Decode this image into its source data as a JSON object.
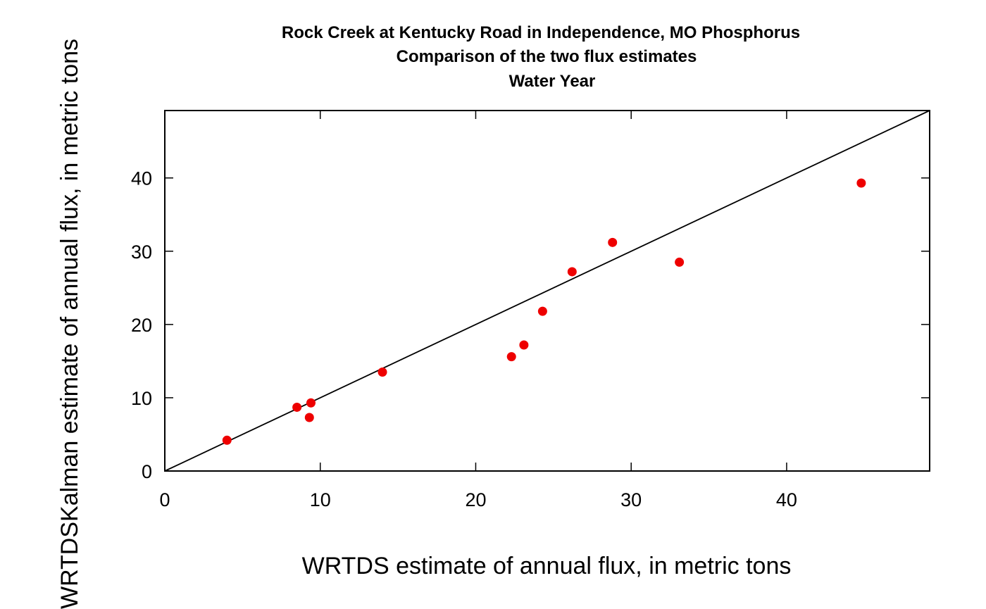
{
  "chart_data": {
    "type": "scatter",
    "title": [
      "Rock Creek at Kentucky Road in Independence, MO  Phosphorus",
      "Comparison of the two flux estimates",
      "Water Year"
    ],
    "xlabel": "WRTDS estimate of annual flux, in metric tons",
    "ylabel": "WRTDSKalman estimate of annual flux, in metric tons",
    "xlim": [
      0,
      49.2
    ],
    "ylim": [
      0,
      49.2
    ],
    "xticks": [
      0,
      10,
      20,
      30,
      40
    ],
    "yticks": [
      0,
      10,
      20,
      30,
      40
    ],
    "grid": false,
    "legend": "none",
    "reference_line": "1:1",
    "point_color": "#ee0000",
    "series": [
      {
        "x": [
          4.0,
          8.5,
          9.3,
          9.4,
          14.0,
          22.3,
          23.1,
          24.3,
          26.2,
          28.8,
          33.1,
          44.8
        ],
        "y": [
          4.2,
          8.7,
          7.3,
          9.3,
          13.5,
          15.6,
          17.2,
          21.8,
          27.2,
          31.2,
          28.5,
          39.3
        ]
      }
    ]
  }
}
